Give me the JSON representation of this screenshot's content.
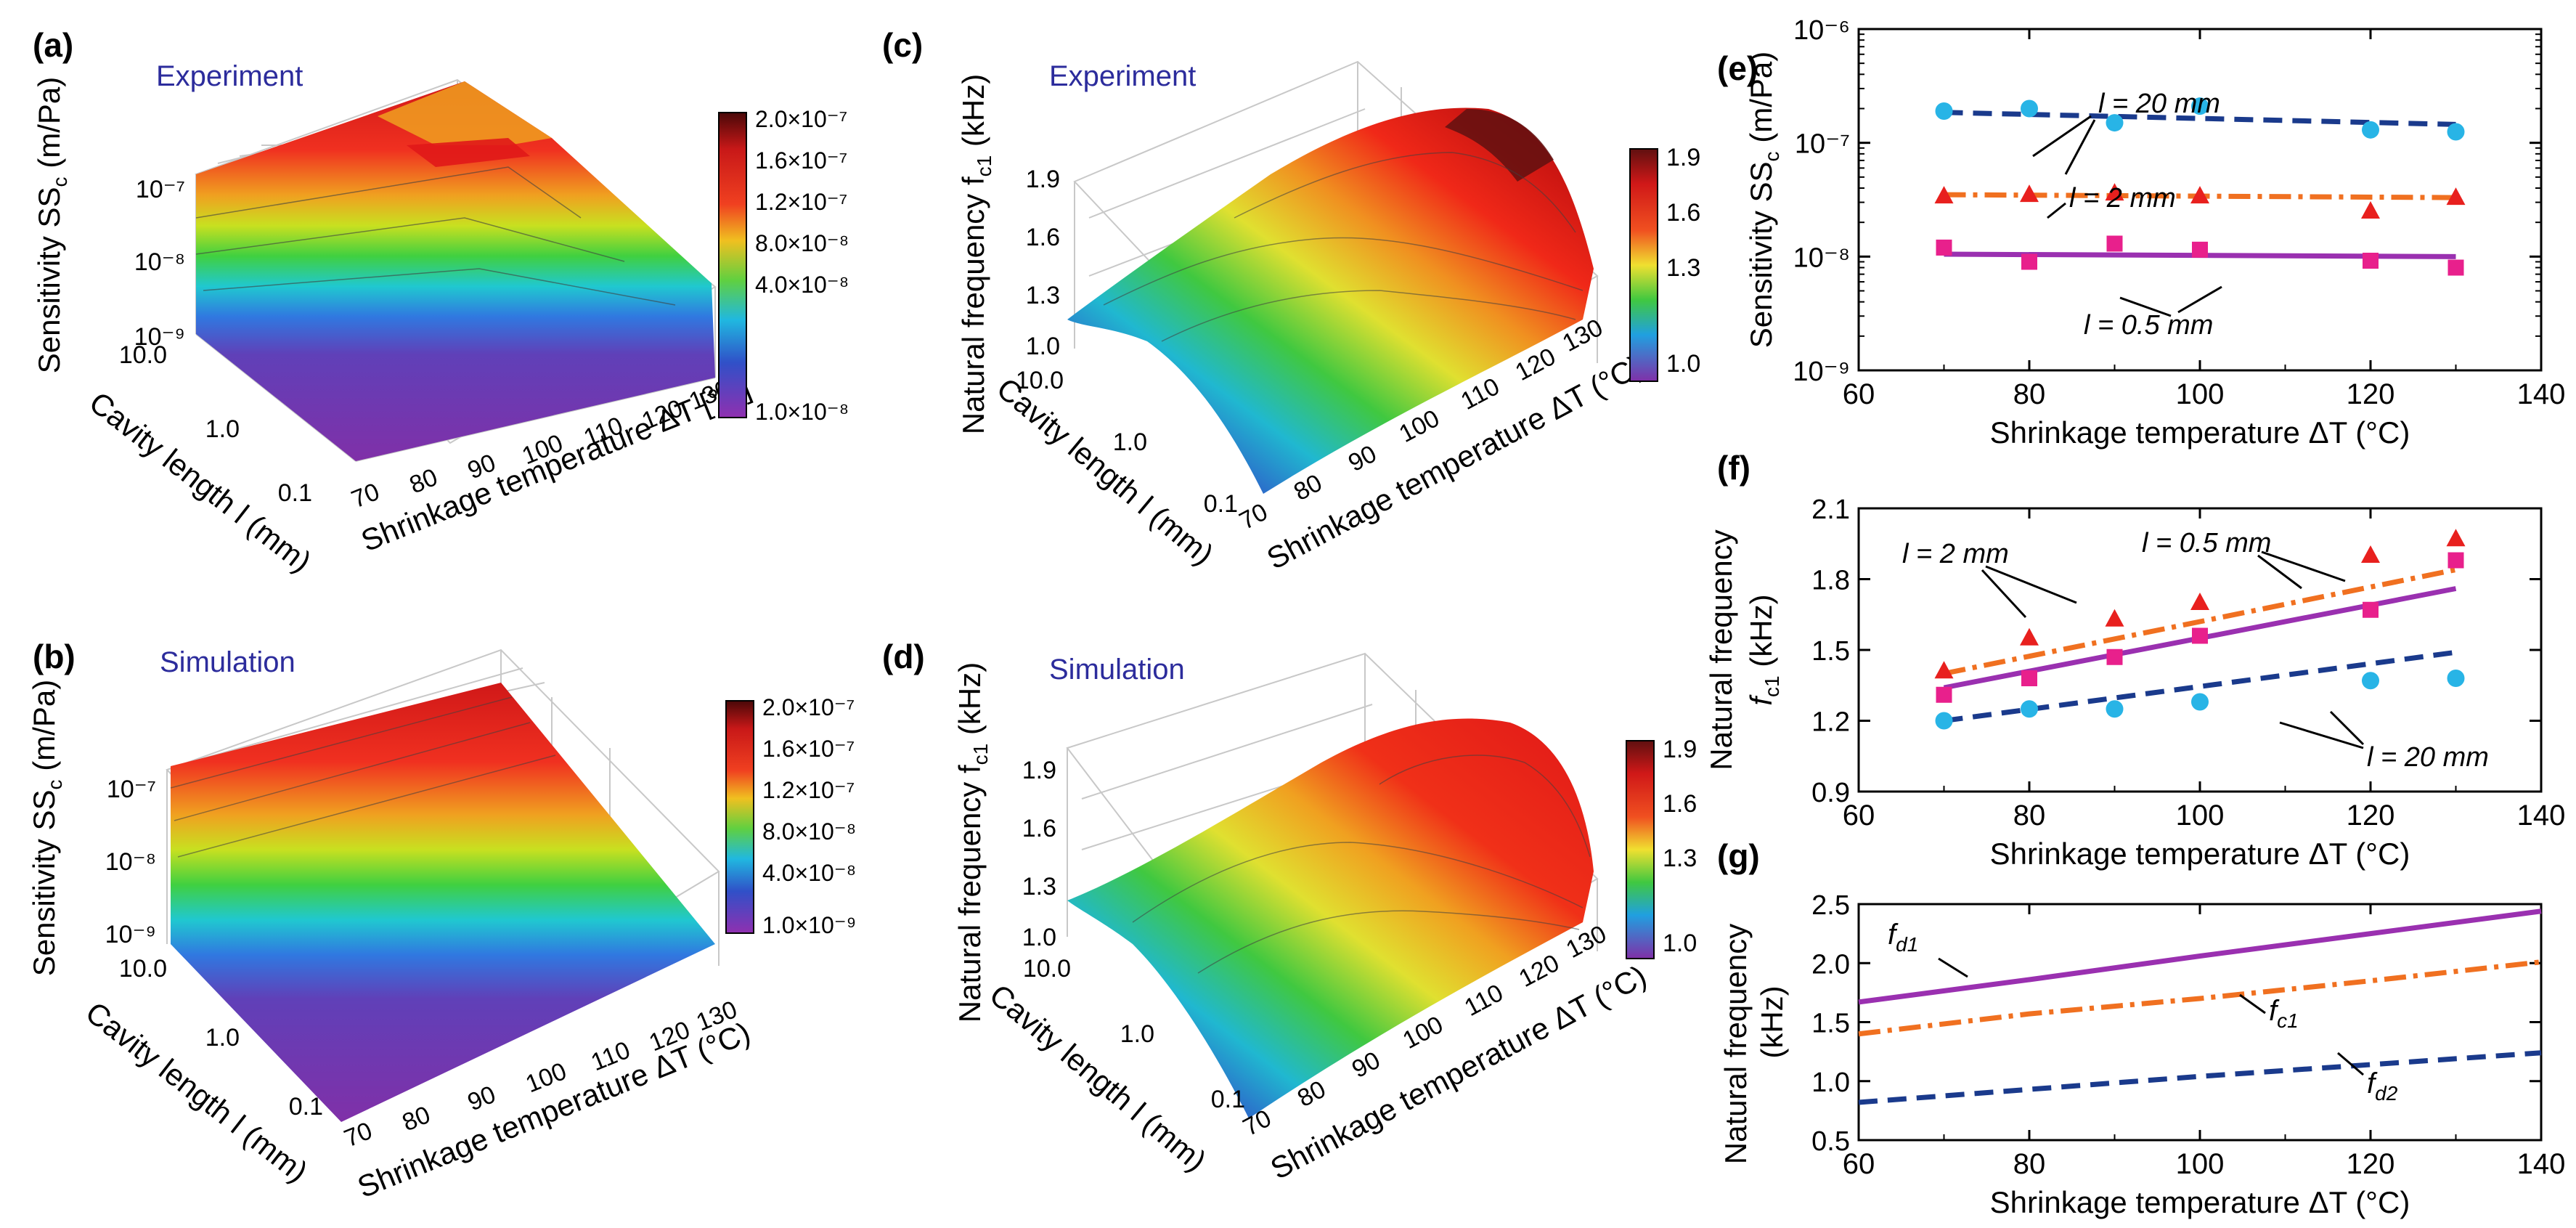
{
  "panels": {
    "a": {
      "letter": "(a)",
      "title": "Experiment",
      "zlabel": "Sensitivity SS",
      "zsub": "c",
      "zunit": " (m/Pa)",
      "ylabel": "Cavity length l (mm)",
      "xlabel": "Shrinkage temperature ΔT  [°C]",
      "zticks": [
        "10⁻⁷",
        "10⁻⁸",
        "10⁻⁹"
      ],
      "yticks": [
        "10.0",
        "1.0",
        "0.1"
      ],
      "xticks": [
        "70",
        "80",
        "90",
        "100",
        "110",
        "120",
        "130"
      ],
      "cbar": [
        "2.0×10⁻⁷",
        "1.6×10⁻⁷",
        "1.2×10⁻⁷",
        "8.0×10⁻⁸",
        "4.0×10⁻⁸",
        "1.0×10⁻⁸"
      ]
    },
    "b": {
      "letter": "(b)",
      "title": "Simulation",
      "zlabel": "Sensitivity SS",
      "zsub": "c",
      "zunit": " (m/Pa)",
      "ylabel": "Cavity length l (mm)",
      "xlabel": "Shrinkage temperature ΔT (°C)",
      "zticks": [
        "10⁻⁷",
        "10⁻⁸",
        "10⁻⁹"
      ],
      "yticks": [
        "10.0",
        "1.0",
        "0.1"
      ],
      "xticks": [
        "70",
        "80",
        "90",
        "100",
        "110",
        "120",
        "130"
      ],
      "cbar": [
        "2.0×10⁻⁷",
        "1.6×10⁻⁷",
        "1.2×10⁻⁷",
        "8.0×10⁻⁸",
        "4.0×10⁻⁸",
        "1.0×10⁻⁹"
      ]
    },
    "c": {
      "letter": "(c)",
      "title": "Experiment",
      "zlabel": "Natural frequency f",
      "zsub": "c1",
      "zunit": " (kHz)",
      "ylabel": "Cavity length l (mm)",
      "xlabel": "Shrinkage temperature ΔT (°C)",
      "zticks": [
        "1.9",
        "1.6",
        "1.3",
        "1.0"
      ],
      "yticks": [
        "10.0",
        "1.0",
        "0.1"
      ],
      "xticks": [
        "70",
        "80",
        "90",
        "100",
        "110",
        "120",
        "130"
      ],
      "cbar": [
        "1.9",
        "1.6",
        "1.3",
        "1.0"
      ]
    },
    "d": {
      "letter": "(d)",
      "title": "Simulation",
      "zlabel": "Natural frequency f",
      "zsub": "c1",
      "zunit": " (kHz)",
      "ylabel": "Cavity length l (mm)",
      "xlabel": "Shrinkage temperature ΔT (°C)",
      "zticks": [
        "1.9",
        "1.6",
        "1.3",
        "1.0"
      ],
      "yticks": [
        "10.0",
        "1.0",
        "0.1"
      ],
      "xticks": [
        "70",
        "80",
        "90",
        "100",
        "110",
        "120",
        "130"
      ],
      "cbar": [
        "1.9",
        "1.6",
        "1.3",
        "1.0"
      ]
    }
  },
  "chart_data": [
    {
      "id": "e",
      "letter": "(e)",
      "type": "scatter",
      "ylabel": "Sensitivity SS",
      "ysub": "c",
      "yunit": " (m/Pa)",
      "xlabel": "Shrinkage temperature ΔT (°C)",
      "xlim": [
        60,
        140
      ],
      "xticks": [
        60,
        80,
        100,
        120,
        140
      ],
      "ylog": true,
      "ylim": [
        1e-09,
        1e-06
      ],
      "yticklabels": [
        "10⁻⁶",
        "10⁻⁷",
        "10⁻⁸",
        "10⁻⁹"
      ],
      "series": [
        {
          "name": "l = 20 mm",
          "marker": "circle",
          "color": "#28b4e6",
          "line_color": "#1a3a8c",
          "dash": "dash",
          "x": [
            70,
            80,
            90,
            100,
            120,
            130
          ],
          "y": [
            1.9e-07,
            2e-07,
            1.5e-07,
            2.1e-07,
            1.3e-07,
            1.25e-07
          ],
          "fit": [
            [
              70,
              1.85e-07
            ],
            [
              130,
              1.45e-07
            ]
          ]
        },
        {
          "name": "l = 2 mm",
          "marker": "triangle",
          "color": "#e8201e",
          "line_color": "#f07020",
          "dash": "dashdot",
          "x": [
            70,
            80,
            90,
            100,
            120,
            130
          ],
          "y": [
            3.4e-08,
            3.5e-08,
            3.6e-08,
            3.4e-08,
            2.5e-08,
            3.3e-08
          ],
          "fit": [
            [
              70,
              3.5e-08
            ],
            [
              130,
              3.3e-08
            ]
          ]
        },
        {
          "name": "l = 0.5 mm",
          "marker": "square",
          "color": "#e8208c",
          "line_color": "#9a30b0",
          "dash": "solid",
          "x": [
            70,
            80,
            90,
            100,
            120,
            130
          ],
          "y": [
            1.2e-08,
            9e-09,
            1.3e-08,
            1.15e-08,
            9.2e-09,
            8e-09
          ],
          "fit": [
            [
              70,
              1.05e-08
            ],
            [
              130,
              1e-08
            ]
          ]
        }
      ],
      "annotations": [
        "l = 20 mm",
        "l = 2 mm",
        "l = 0.5 mm"
      ]
    },
    {
      "id": "f",
      "letter": "(f)",
      "type": "scatter",
      "ylabel": "Natural frequency",
      "ylabel2": "f",
      "ysub": "c1",
      "yunit": " (kHz)",
      "xlabel": "Shrinkage temperature ΔT (°C)",
      "xlim": [
        60,
        140
      ],
      "xticks": [
        60,
        80,
        100,
        120,
        140
      ],
      "ylim": [
        0.9,
        2.1
      ],
      "yticks": [
        0.9,
        1.2,
        1.5,
        1.8,
        2.1
      ],
      "yticklabels": [
        "0.9",
        "1.2",
        "1.5",
        "1.8",
        "2.1"
      ],
      "series": [
        {
          "name": "l = 2 mm",
          "marker": "triangle",
          "color": "#e8201e",
          "line_color": "#f07020",
          "dash": "dashdot",
          "x": [
            70,
            80,
            90,
            100,
            120,
            130
          ],
          "y": [
            1.41,
            1.55,
            1.63,
            1.7,
            1.9,
            1.97
          ],
          "fit": [
            [
              70,
              1.4
            ],
            [
              130,
              1.84
            ]
          ]
        },
        {
          "name": "l = 0.5 mm",
          "marker": "square",
          "color": "#e8208c",
          "line_color": "#9a30b0",
          "dash": "solid",
          "x": [
            70,
            80,
            90,
            100,
            120,
            130
          ],
          "y": [
            1.31,
            1.38,
            1.47,
            1.56,
            1.67,
            1.88
          ],
          "fit": [
            [
              70,
              1.34
            ],
            [
              130,
              1.76
            ]
          ]
        },
        {
          "name": "l = 20 mm",
          "marker": "circle",
          "color": "#28b4e6",
          "line_color": "#1a3a8c",
          "dash": "dash",
          "x": [
            70,
            80,
            90,
            100,
            120,
            130
          ],
          "y": [
            1.2,
            1.25,
            1.25,
            1.28,
            1.37,
            1.38
          ],
          "fit": [
            [
              70,
              1.2
            ],
            [
              130,
              1.49
            ]
          ]
        }
      ],
      "annotations": [
        "l = 2 mm",
        "l = 0.5 mm",
        "l = 20 mm"
      ]
    },
    {
      "id": "g",
      "letter": "(g)",
      "type": "line",
      "ylabel": "Natural frequency",
      "yunit": "(kHz)",
      "xlabel": "Shrinkage temperature ΔT (°C)",
      "xlim": [
        60,
        140
      ],
      "xticks": [
        60,
        80,
        100,
        120,
        140
      ],
      "ylim": [
        0.5,
        2.5
      ],
      "yticks": [
        0.5,
        1.0,
        1.5,
        2.0,
        2.5
      ],
      "yticklabels": [
        "0.5",
        "1.0",
        "1.5",
        "2.0",
        "2.5"
      ],
      "series": [
        {
          "name": "f_d1",
          "label": "f",
          "sub": "d1",
          "color": "#9a30b0",
          "dash": "solid",
          "x": [
            60,
            80,
            100,
            120,
            140
          ],
          "y": [
            1.67,
            1.86,
            2.06,
            2.25,
            2.44
          ]
        },
        {
          "name": "f_c1",
          "label": "f",
          "sub": "c1",
          "color": "#f07020",
          "dash": "dashdot",
          "x": [
            60,
            80,
            100,
            120,
            140
          ],
          "y": [
            1.4,
            1.57,
            1.7,
            1.85,
            2.01
          ]
        },
        {
          "name": "f_d2",
          "label": "f",
          "sub": "d2",
          "color": "#1a3a8c",
          "dash": "dash",
          "x": [
            60,
            80,
            100,
            120,
            140
          ],
          "y": [
            0.82,
            0.93,
            1.04,
            1.14,
            1.24
          ]
        }
      ]
    }
  ]
}
